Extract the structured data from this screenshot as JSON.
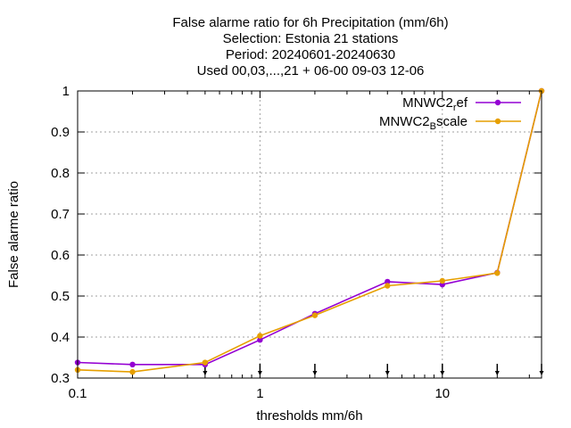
{
  "chart_data": {
    "type": "line",
    "title_lines": [
      "False alarme ratio  for 6h Precipitation (mm/6h)",
      "Selection: Estonia     21 stations",
      "Period: 20240601-20240630",
      "Used 00,03,...,21 + 06-00 09-03 12-06"
    ],
    "xlabel": "thresholds mm/6h",
    "ylabel": "False alarme ratio",
    "x_scale": "log",
    "xlim": [
      0.1,
      35
    ],
    "ylim": [
      0.3,
      1.0
    ],
    "x_ticks": [
      {
        "value": 0.1,
        "label": "0.1"
      },
      {
        "value": 1,
        "label": "1"
      },
      {
        "value": 10,
        "label": "10"
      }
    ],
    "y_ticks": [
      {
        "value": 0.3,
        "label": "0.3"
      },
      {
        "value": 0.4,
        "label": "0.4"
      },
      {
        "value": 0.5,
        "label": "0.5"
      },
      {
        "value": 0.6,
        "label": "0.6"
      },
      {
        "value": 0.7,
        "label": "0.7"
      },
      {
        "value": 0.8,
        "label": "0.8"
      },
      {
        "value": 0.9,
        "label": "0.9"
      },
      {
        "value": 1.0,
        "label": "1"
      }
    ],
    "grid": true,
    "legend_position": "top-right",
    "threshold_markers_x": [
      0.5,
      1,
      2,
      5,
      10,
      20,
      35
    ],
    "series": [
      {
        "name_main": "MNWC2",
        "name_sub": "r",
        "name_rest": "ef",
        "color": "#9400d3",
        "x": [
          0.1,
          0.2,
          0.5,
          1,
          2,
          5,
          10,
          20,
          35
        ],
        "y": [
          0.338,
          0.333,
          0.333,
          0.393,
          0.457,
          0.535,
          0.528,
          0.557,
          1.0
        ]
      },
      {
        "name_main": "MNWC2",
        "name_sub": "B",
        "name_rest": "scale",
        "color": "#e69f00",
        "x": [
          0.1,
          0.2,
          0.5,
          1,
          2,
          5,
          10,
          20,
          35
        ],
        "y": [
          0.32,
          0.315,
          0.338,
          0.403,
          0.453,
          0.525,
          0.537,
          0.556,
          1.0
        ]
      }
    ]
  }
}
